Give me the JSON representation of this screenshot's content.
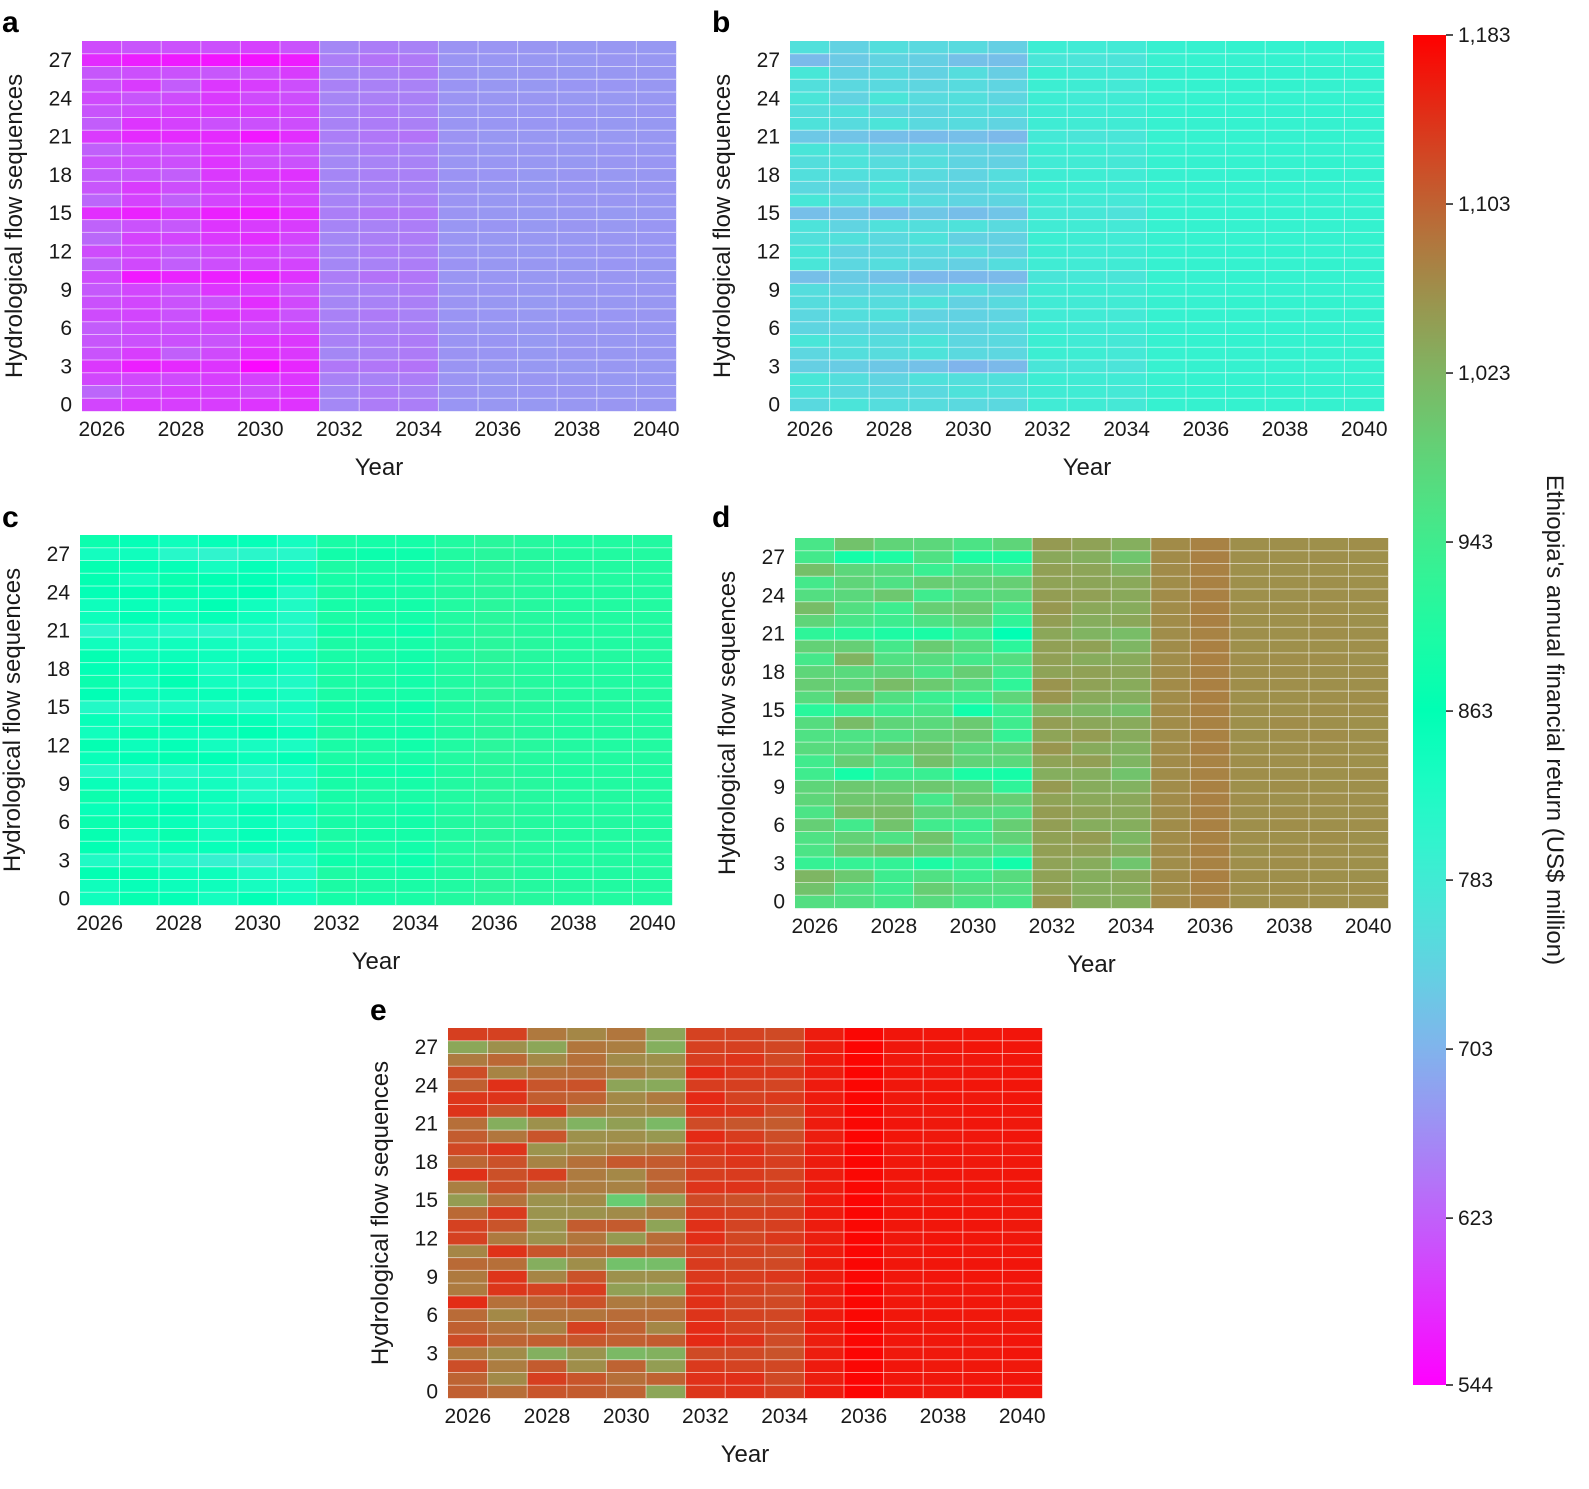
{
  "chart_data": {
    "type": "heatmap",
    "colorbar": {
      "label": "Ethiopia's annual financial return (US$ million)",
      "min": 544,
      "max": 1183,
      "ticks": [
        544,
        623,
        703,
        783,
        863,
        943,
        1023,
        1103,
        1183
      ],
      "tick_labels": [
        "544",
        "623",
        "703",
        "783",
        "863",
        "943",
        "1,023",
        "1,103",
        "1,183"
      ],
      "colormap": "rainbow"
    },
    "years": [
      2026,
      2027,
      2028,
      2029,
      2030,
      2031,
      2032,
      2033,
      2034,
      2035,
      2036,
      2037,
      2038,
      2039,
      2040
    ],
    "x_ticks": [
      "2026",
      "2028",
      "2030",
      "2032",
      "2034",
      "2036",
      "2038",
      "2040"
    ],
    "y_ticks": [
      "0",
      "3",
      "6",
      "9",
      "12",
      "15",
      "18",
      "21",
      "24",
      "27"
    ],
    "sequences_count": 29,
    "xlabel": "Year",
    "ylabel": "Hydrological flow sequences",
    "panels": [
      {
        "letter": "a",
        "early_base": [
          615,
          600,
          608,
          600,
          595,
          598
        ],
        "mid_base": [
          655,
          650,
          650
        ],
        "late_base": [
          670,
          672,
          673,
          673,
          673,
          673
        ],
        "dry_sequences": [
          3,
          10,
          15,
          21,
          27
        ],
        "dry_delta": -35,
        "early_variation": 15
      },
      {
        "letter": "b",
        "early_base": [
          760,
          755,
          758,
          755,
          752,
          750
        ],
        "mid_base": [
          785,
          783,
          780
        ],
        "late_base": [
          795,
          797,
          798,
          798,
          798,
          798
        ],
        "dry_sequences": [
          3,
          10,
          15,
          21,
          27
        ],
        "dry_delta": -40,
        "early_variation": 15
      },
      {
        "letter": "c",
        "early_base": [
          860,
          855,
          855,
          852,
          845,
          840
        ],
        "mid_base": [
          895,
          893,
          890
        ],
        "late_base": [
          905,
          915,
          910,
          905,
          905,
          905
        ],
        "dry_sequences": [
          3,
          10,
          15,
          21,
          27
        ],
        "dry_delta": -40,
        "early_variation": 20
      },
      {
        "letter": "d",
        "early_base": [
          985,
          985,
          980,
          975,
          965,
          955
        ],
        "mid_base": [
          1050,
          1040,
          1030
        ],
        "late_base": [
          1065,
          1075,
          1062,
          1062,
          1062,
          1062
        ],
        "dry_sequences": [
          3,
          10,
          15,
          21,
          27
        ],
        "dry_delta": -70,
        "early_variation": 40
      },
      {
        "letter": "e",
        "early_base": [
          1110,
          1105,
          1095,
          1095,
          1080,
          1070
        ],
        "mid_base": [
          1140,
          1135,
          1130
        ],
        "late_base": [
          1160,
          1178,
          1165,
          1165,
          1165,
          1165
        ],
        "dry_sequences": [
          3,
          10,
          15,
          21,
          27
        ],
        "dry_delta": -50,
        "early_variation": 40
      }
    ]
  }
}
